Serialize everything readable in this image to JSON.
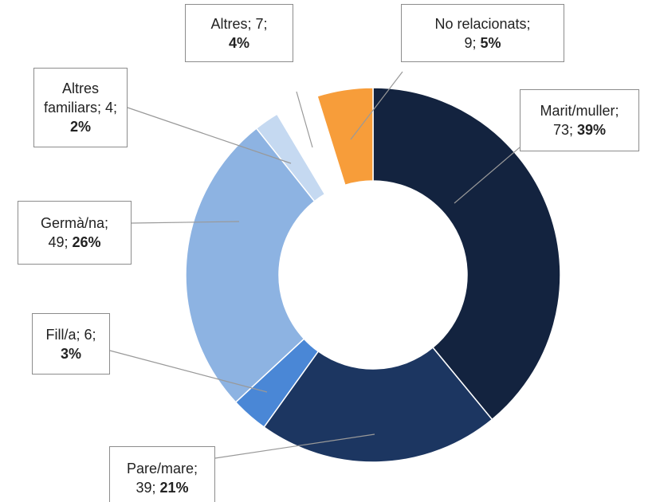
{
  "chart_data": {
    "type": "donut",
    "separator": "; ",
    "categories": [
      "Marit/muller",
      "Pare/mare",
      "Fill/a",
      "Germà/na",
      "Altres familiars",
      "Altres",
      "No relacionats"
    ],
    "values": [
      73,
      39,
      6,
      49,
      4,
      7,
      9
    ],
    "percents": [
      39,
      21,
      3,
      26,
      2,
      4,
      5
    ],
    "percent_labels": [
      "39%",
      "21%",
      "3%",
      "26%",
      "2%",
      "4%",
      "5%"
    ],
    "colors": [
      "#13233f",
      "#1c3661",
      "#4a87d6",
      "#8db3e2",
      "#c5d9f1",
      "#ffffff",
      "#f79d3a"
    ]
  }
}
